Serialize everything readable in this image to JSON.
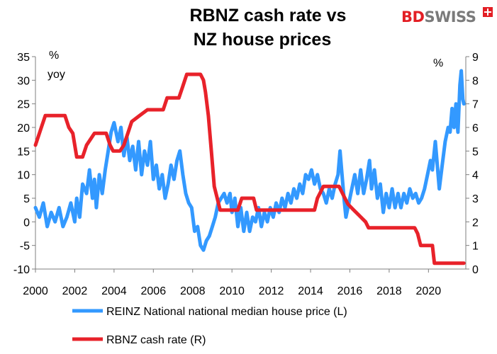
{
  "brand": {
    "name_red": "BD",
    "name_grey": "SWISS",
    "icon": "swiss-cross-icon"
  },
  "chart_data": {
    "type": "line",
    "title": [
      "RBNZ cash rate vs",
      "NZ house prices"
    ],
    "left_axis": {
      "label_line1": "%",
      "label_line2": "yoy",
      "range": [
        -10,
        35
      ],
      "ticks": [
        -10,
        -5,
        0,
        5,
        10,
        15,
        20,
        25,
        30,
        35
      ]
    },
    "right_axis": {
      "label": "%",
      "range": [
        0,
        9
      ],
      "ticks": [
        0,
        1,
        2,
        3,
        4,
        5,
        6,
        7,
        8,
        9
      ]
    },
    "x_axis": {
      "range": [
        2000,
        2021.9
      ],
      "ticks": [
        2000,
        2002,
        2004,
        2006,
        2008,
        2010,
        2012,
        2014,
        2016,
        2018,
        2020
      ]
    },
    "legend_position": "bottom",
    "series": [
      {
        "name": "REINZ National national median house price (L)",
        "axis": "left",
        "color": "#3399ff",
        "points": [
          [
            2000.0,
            3
          ],
          [
            2000.2,
            1
          ],
          [
            2000.4,
            4
          ],
          [
            2000.6,
            -1
          ],
          [
            2000.8,
            2
          ],
          [
            2001.0,
            0
          ],
          [
            2001.2,
            3
          ],
          [
            2001.4,
            -1
          ],
          [
            2001.6,
            1
          ],
          [
            2001.8,
            4
          ],
          [
            2002.0,
            0
          ],
          [
            2002.1,
            5
          ],
          [
            2002.25,
            1
          ],
          [
            2002.4,
            8
          ],
          [
            2002.6,
            6
          ],
          [
            2002.75,
            11
          ],
          [
            2002.9,
            5
          ],
          [
            2003.0,
            9
          ],
          [
            2003.1,
            3
          ],
          [
            2003.25,
            10
          ],
          [
            2003.4,
            6
          ],
          [
            2003.55,
            11
          ],
          [
            2003.7,
            15
          ],
          [
            2003.85,
            19
          ],
          [
            2004.0,
            21
          ],
          [
            2004.2,
            17
          ],
          [
            2004.35,
            20
          ],
          [
            2004.5,
            14
          ],
          [
            2004.65,
            18
          ],
          [
            2004.8,
            13
          ],
          [
            2004.95,
            16
          ],
          [
            2005.1,
            11
          ],
          [
            2005.25,
            17
          ],
          [
            2005.4,
            10
          ],
          [
            2005.55,
            15
          ],
          [
            2005.7,
            12
          ],
          [
            2005.85,
            17
          ],
          [
            2006.0,
            9
          ],
          [
            2006.15,
            12
          ],
          [
            2006.3,
            7
          ],
          [
            2006.45,
            10
          ],
          [
            2006.6,
            5
          ],
          [
            2006.75,
            8
          ],
          [
            2006.9,
            12
          ],
          [
            2007.05,
            9
          ],
          [
            2007.2,
            13
          ],
          [
            2007.35,
            15
          ],
          [
            2007.5,
            10
          ],
          [
            2007.65,
            6
          ],
          [
            2007.8,
            4
          ],
          [
            2007.95,
            3
          ],
          [
            2008.1,
            -2
          ],
          [
            2008.25,
            -1
          ],
          [
            2008.4,
            -5
          ],
          [
            2008.55,
            -6
          ],
          [
            2008.7,
            -4
          ],
          [
            2008.85,
            -3
          ],
          [
            2009.0,
            -1
          ],
          [
            2009.15,
            1
          ],
          [
            2009.3,
            4
          ],
          [
            2009.45,
            5
          ],
          [
            2009.6,
            6
          ],
          [
            2009.75,
            4
          ],
          [
            2009.9,
            6
          ],
          [
            2010.0,
            2
          ],
          [
            2010.15,
            5
          ],
          [
            2010.3,
            -1
          ],
          [
            2010.45,
            3
          ],
          [
            2010.6,
            -2
          ],
          [
            2010.75,
            2
          ],
          [
            2010.9,
            -2
          ],
          [
            2011.05,
            1
          ],
          [
            2011.2,
            0
          ],
          [
            2011.35,
            3
          ],
          [
            2011.5,
            -1
          ],
          [
            2011.65,
            2
          ],
          [
            2011.8,
            0
          ],
          [
            2011.95,
            3
          ],
          [
            2012.1,
            1
          ],
          [
            2012.25,
            4
          ],
          [
            2012.4,
            2
          ],
          [
            2012.55,
            5
          ],
          [
            2012.7,
            3
          ],
          [
            2012.85,
            6
          ],
          [
            2013.0,
            4
          ],
          [
            2013.15,
            7
          ],
          [
            2013.3,
            5
          ],
          [
            2013.45,
            8
          ],
          [
            2013.6,
            6
          ],
          [
            2013.75,
            10
          ],
          [
            2013.9,
            9
          ],
          [
            2014.05,
            11
          ],
          [
            2014.2,
            8
          ],
          [
            2014.35,
            10
          ],
          [
            2014.5,
            7
          ],
          [
            2014.65,
            6
          ],
          [
            2014.8,
            4
          ],
          [
            2014.95,
            7
          ],
          [
            2015.1,
            5
          ],
          [
            2015.25,
            8
          ],
          [
            2015.4,
            10
          ],
          [
            2015.5,
            15
          ],
          [
            2015.6,
            10
          ],
          [
            2015.7,
            5
          ],
          [
            2015.8,
            1
          ],
          [
            2015.95,
            4
          ],
          [
            2016.1,
            7
          ],
          [
            2016.25,
            10
          ],
          [
            2016.4,
            6
          ],
          [
            2016.55,
            11
          ],
          [
            2016.7,
            6
          ],
          [
            2016.85,
            9
          ],
          [
            2017.0,
            13
          ],
          [
            2017.1,
            7
          ],
          [
            2017.25,
            11
          ],
          [
            2017.4,
            5
          ],
          [
            2017.55,
            8
          ],
          [
            2017.7,
            2
          ],
          [
            2017.85,
            6
          ],
          [
            2018.0,
            3
          ],
          [
            2018.15,
            7
          ],
          [
            2018.3,
            3
          ],
          [
            2018.45,
            6
          ],
          [
            2018.6,
            3
          ],
          [
            2018.75,
            6
          ],
          [
            2018.9,
            4
          ],
          [
            2019.05,
            7
          ],
          [
            2019.2,
            5
          ],
          [
            2019.35,
            6
          ],
          [
            2019.5,
            4
          ],
          [
            2019.65,
            5
          ],
          [
            2019.8,
            7
          ],
          [
            2019.95,
            10
          ],
          [
            2020.1,
            13
          ],
          [
            2020.2,
            11
          ],
          [
            2020.35,
            17
          ],
          [
            2020.45,
            12
          ],
          [
            2020.55,
            7
          ],
          [
            2020.7,
            12
          ],
          [
            2020.85,
            17
          ],
          [
            2021.0,
            20
          ],
          [
            2021.1,
            19
          ],
          [
            2021.2,
            24
          ],
          [
            2021.3,
            20
          ],
          [
            2021.4,
            25
          ],
          [
            2021.5,
            19
          ],
          [
            2021.6,
            29
          ],
          [
            2021.67,
            32
          ],
          [
            2021.75,
            26
          ],
          [
            2021.8,
            25
          ]
        ]
      },
      {
        "name": "RBNZ cash rate (R)",
        "axis": "right",
        "color": "#e8222a",
        "points": [
          [
            2000.0,
            5.25
          ],
          [
            2000.3,
            6.0
          ],
          [
            2000.5,
            6.5
          ],
          [
            2001.5,
            6.5
          ],
          [
            2001.7,
            6.0
          ],
          [
            2001.9,
            5.75
          ],
          [
            2002.1,
            4.75
          ],
          [
            2002.4,
            4.75
          ],
          [
            2002.6,
            5.25
          ],
          [
            2002.8,
            5.5
          ],
          [
            2003.0,
            5.75
          ],
          [
            2003.6,
            5.75
          ],
          [
            2003.8,
            5.25
          ],
          [
            2003.95,
            5.0
          ],
          [
            2004.3,
            5.0
          ],
          [
            2004.5,
            5.25
          ],
          [
            2004.7,
            5.75
          ],
          [
            2004.9,
            6.25
          ],
          [
            2005.3,
            6.5
          ],
          [
            2005.7,
            6.75
          ],
          [
            2006.5,
            6.75
          ],
          [
            2006.7,
            7.25
          ],
          [
            2007.3,
            7.25
          ],
          [
            2007.5,
            7.75
          ],
          [
            2007.7,
            8.25
          ],
          [
            2008.4,
            8.25
          ],
          [
            2008.55,
            8.0
          ],
          [
            2008.65,
            7.5
          ],
          [
            2008.8,
            6.5
          ],
          [
            2008.95,
            5.0
          ],
          [
            2009.1,
            3.5
          ],
          [
            2009.25,
            3.0
          ],
          [
            2009.4,
            2.5
          ],
          [
            2010.3,
            2.5
          ],
          [
            2010.5,
            3.0
          ],
          [
            2011.1,
            3.0
          ],
          [
            2011.25,
            2.5
          ],
          [
            2014.2,
            2.5
          ],
          [
            2014.35,
            3.0
          ],
          [
            2014.5,
            3.25
          ],
          [
            2014.65,
            3.5
          ],
          [
            2015.45,
            3.5
          ],
          [
            2015.6,
            3.25
          ],
          [
            2015.75,
            3.0
          ],
          [
            2015.9,
            2.75
          ],
          [
            2016.2,
            2.5
          ],
          [
            2016.5,
            2.25
          ],
          [
            2016.8,
            2.0
          ],
          [
            2016.95,
            1.75
          ],
          [
            2019.3,
            1.75
          ],
          [
            2019.45,
            1.5
          ],
          [
            2019.6,
            1.0
          ],
          [
            2020.2,
            1.0
          ],
          [
            2020.3,
            0.25
          ],
          [
            2021.8,
            0.25
          ]
        ]
      }
    ]
  }
}
